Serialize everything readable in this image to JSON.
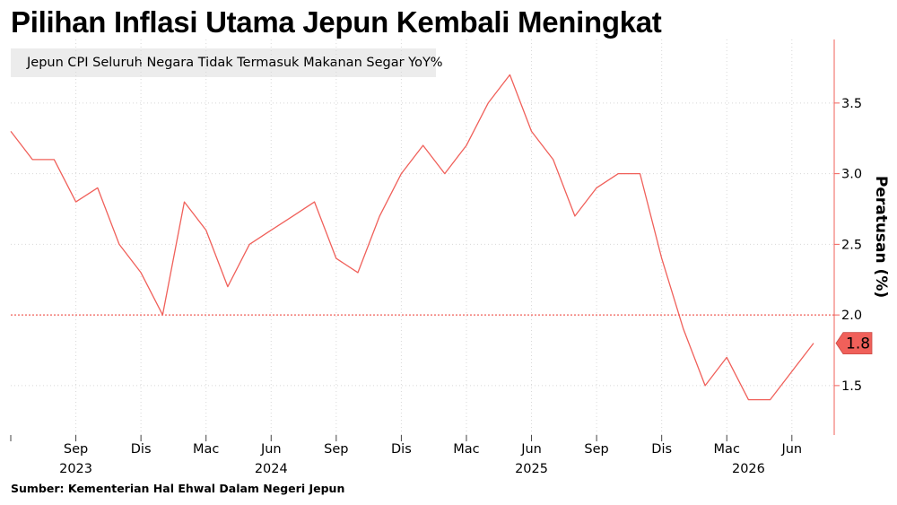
{
  "chart_data": {
    "type": "line",
    "title": "Pilihan Inflasi Utama Jepun Kembali Meningkat",
    "ylabel": "Peratusan (%)",
    "source": "Sumber: Kementerian Hal Ehwal Dalam Negeri Jepun",
    "ylim": [
      1.15,
      3.95
    ],
    "y_ticks": [
      "1.5",
      "2.0",
      "2.5",
      "3.0",
      "3.5"
    ],
    "x_ticks": [
      {
        "label": "Sep",
        "date": "2023-09"
      },
      {
        "label": "Dis",
        "date": "2023-12"
      },
      {
        "label": "Mac",
        "date": "2024-03"
      },
      {
        "label": "Jun",
        "date": "2024-06"
      },
      {
        "label": "Sep",
        "date": "2024-09"
      },
      {
        "label": "Dis",
        "date": "2024-12"
      },
      {
        "label": "Mac",
        "date": "2025-03"
      },
      {
        "label": "Jun",
        "date": "2025-06"
      },
      {
        "label": "Sep",
        "date": "2025-09"
      },
      {
        "label": "Dis",
        "date": "2025-12"
      },
      {
        "label": "Mac",
        "date": "2026-03"
      },
      {
        "label": "Jun",
        "date": "2026-06"
      }
    ],
    "year_labels": [
      {
        "label": "2023",
        "date": "2023-09"
      },
      {
        "label": "2024",
        "date": "2024-06"
      },
      {
        "label": "2025",
        "date": "2025-06"
      },
      {
        "label": "2026",
        "date": "2026-04"
      }
    ],
    "x_range": [
      "2023-06",
      "2026-07"
    ],
    "grid": true,
    "legend_position": "top-left",
    "reference_line": {
      "y": 2.0,
      "color": "#f0605a",
      "style": "dotted"
    },
    "last_value_label": "1.8",
    "series": [
      {
        "name": "Jepun CPI Seluruh Negara Tidak Termasuk Makanan Segar YoY%",
        "color": "#f0605a",
        "x": [
          "2023-06",
          "2023-07",
          "2023-08",
          "2023-09",
          "2023-10",
          "2023-11",
          "2023-12",
          "2024-01",
          "2024-02",
          "2024-03",
          "2024-04",
          "2024-05",
          "2024-06",
          "2024-07",
          "2024-08",
          "2024-09",
          "2024-10",
          "2024-11",
          "2024-12",
          "2025-01",
          "2025-02",
          "2025-03",
          "2025-04",
          "2025-05",
          "2025-06",
          "2025-07",
          "2025-08",
          "2025-09",
          "2025-10",
          "2025-11",
          "2025-12",
          "2026-01",
          "2026-02",
          "2026-03",
          "2026-04",
          "2026-05",
          "2026-06",
          "2026-07"
        ],
        "values": [
          3.3,
          3.1,
          3.1,
          2.8,
          2.9,
          2.5,
          2.3,
          2.0,
          2.8,
          2.6,
          2.2,
          2.5,
          2.6,
          2.7,
          2.8,
          2.4,
          2.3,
          2.7,
          3.0,
          3.2,
          3.0,
          3.2,
          3.5,
          3.7,
          3.3,
          3.1,
          2.7,
          2.9,
          3.0,
          3.0,
          2.4,
          1.9,
          1.5,
          1.7,
          1.4,
          1.4,
          1.6,
          1.8
        ]
      }
    ]
  }
}
